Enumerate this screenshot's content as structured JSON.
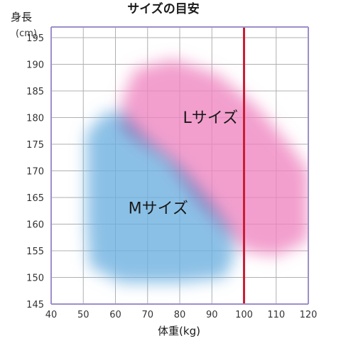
{
  "chart_data": {
    "type": "area",
    "title": "サイズの目安",
    "ylabel_main": "身長",
    "ylabel_unit": "(cm)",
    "xlabel": "体重(kg)",
    "x_ticks": [
      40,
      50,
      60,
      70,
      80,
      90,
      100,
      110,
      120
    ],
    "y_ticks": [
      145,
      150,
      155,
      160,
      165,
      170,
      175,
      180,
      185,
      190,
      195
    ],
    "xlim": [
      40,
      120
    ],
    "ylim": [
      145,
      197
    ],
    "grid": true,
    "regions": [
      {
        "name": "Mサイズ",
        "color": "#6aaedf",
        "label_at": [
          64,
          162
        ],
        "outline": [
          [
            51,
            177
          ],
          [
            57,
            181
          ],
          [
            62,
            181
          ],
          [
            70,
            176
          ],
          [
            80,
            171
          ],
          [
            90,
            164
          ],
          [
            96,
            159
          ],
          [
            97,
            154
          ],
          [
            94,
            150
          ],
          [
            80,
            149
          ],
          [
            62,
            149
          ],
          [
            52,
            152
          ],
          [
            51,
            160
          ]
        ]
      },
      {
        "name": "Lサイズ",
        "color": "#ee84bf",
        "label_at": [
          81,
          179
        ],
        "outline": [
          [
            62,
            183
          ],
          [
            66,
            189
          ],
          [
            78,
            191
          ],
          [
            92,
            188
          ],
          [
            104,
            182
          ],
          [
            114,
            175
          ],
          [
            120,
            170
          ],
          [
            120,
            157
          ],
          [
            110,
            154
          ],
          [
            100,
            155
          ],
          [
            94,
            159
          ],
          [
            86,
            164
          ],
          [
            76,
            172
          ],
          [
            66,
            176
          ],
          [
            62,
            178
          ]
        ]
      }
    ],
    "reference_line": {
      "x": 100,
      "color": "#cc1c35"
    },
    "colors": {
      "grid": "#b0b0b0",
      "frame": "#9e8fc9"
    }
  }
}
